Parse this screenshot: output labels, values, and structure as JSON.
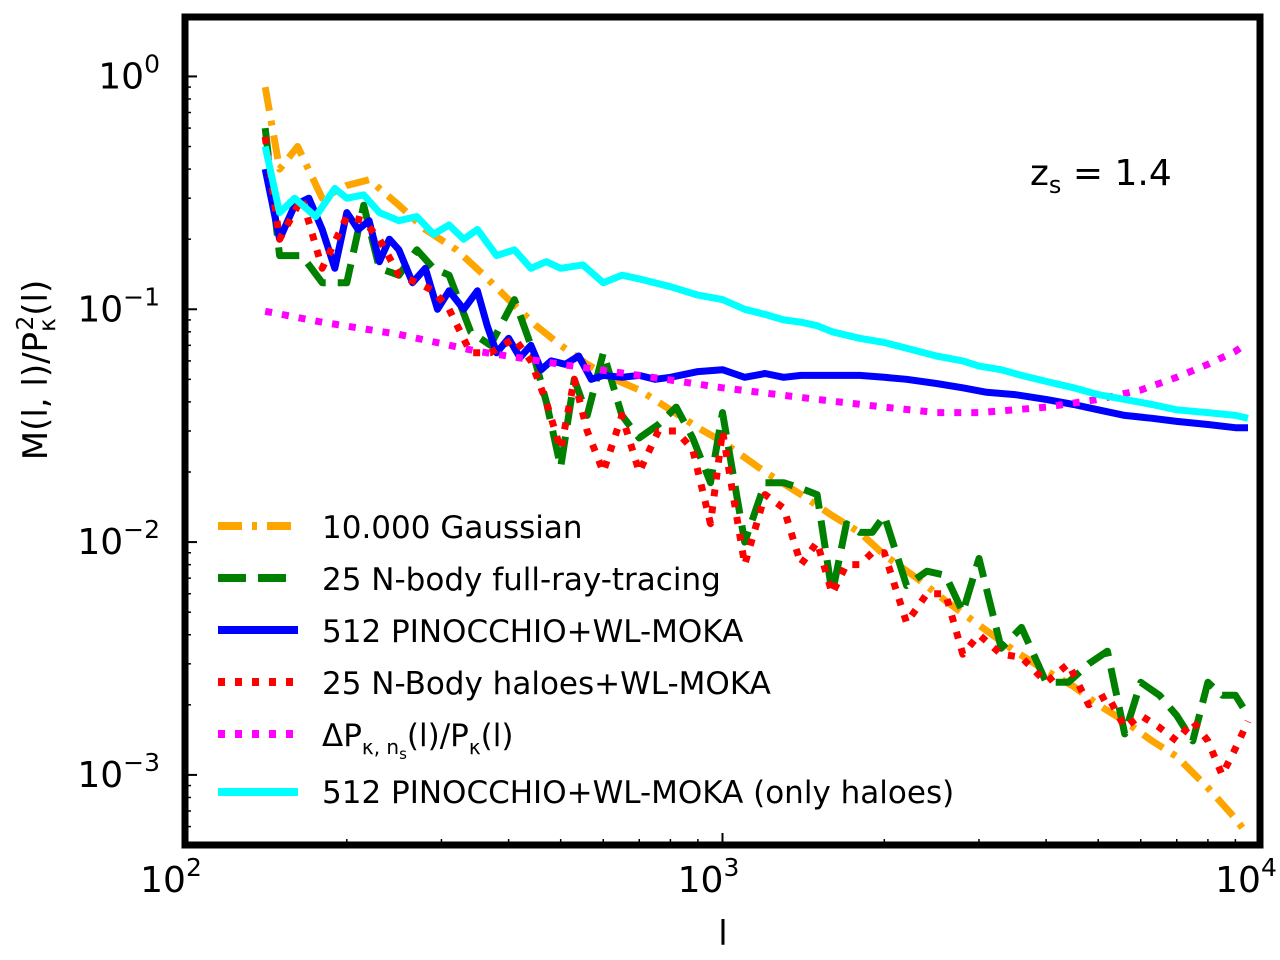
{
  "chart_data": {
    "type": "line",
    "title": "",
    "xlabel": "l",
    "ylabel": "M(l, l)/P_κ²(l)",
    "xscale": "log",
    "yscale": "log",
    "xlim": [
      100,
      10000
    ],
    "ylim": [
      0.0005,
      1.8
    ],
    "x_ticks": [
      {
        "value": 100,
        "base": "10",
        "exp": "2"
      },
      {
        "value": 1000,
        "base": "10",
        "exp": "3"
      },
      {
        "value": 10000,
        "base": "10",
        "exp": "4"
      }
    ],
    "y_ticks": [
      {
        "value": 0.001,
        "base": "10",
        "exp": "−3"
      },
      {
        "value": 0.01,
        "base": "10",
        "exp": "−2"
      },
      {
        "value": 0.1,
        "base": "10",
        "exp": "−1"
      },
      {
        "value": 1,
        "base": "10",
        "exp": "0"
      }
    ],
    "annotation": {
      "label": "z_s = 1.4",
      "main": "z",
      "sub": "s",
      "rest": " = 1.4"
    },
    "legend_position": "lower-left",
    "series": [
      {
        "name": "10.000 Gaussian",
        "color": "#FFA500",
        "style": "dashdot",
        "x": [
          141,
          150,
          162,
          180,
          200,
          220,
          250,
          280,
          320,
          360,
          400,
          450,
          500,
          560,
          630,
          700,
          800,
          900,
          1000,
          1200,
          1400,
          1600,
          1800,
          2000,
          2300,
          2600,
          3000,
          3500,
          4000,
          4500,
          5000,
          5600,
          6300,
          7000,
          8000,
          9000,
          9500
        ],
        "y": [
          0.9,
          0.4,
          0.5,
          0.3,
          0.34,
          0.36,
          0.28,
          0.22,
          0.18,
          0.14,
          0.11,
          0.085,
          0.07,
          0.058,
          0.05,
          0.045,
          0.037,
          0.031,
          0.027,
          0.02,
          0.016,
          0.013,
          0.011,
          0.0088,
          0.007,
          0.0056,
          0.0044,
          0.0034,
          0.0028,
          0.0024,
          0.002,
          0.0017,
          0.0014,
          0.0012,
          0.00088,
          0.00065,
          0.00055
        ]
      },
      {
        "name": "25 N-body full-ray-tracing",
        "color": "#008000",
        "style": "dashed",
        "x": [
          141,
          150,
          165,
          180,
          200,
          215,
          230,
          250,
          270,
          290,
          310,
          340,
          370,
          410,
          440,
          470,
          500,
          530,
          560,
          600,
          650,
          700,
          760,
          820,
          880,
          950,
          1000,
          1100,
          1200,
          1300,
          1400,
          1500,
          1600,
          1700,
          1800,
          1900,
          2000,
          2200,
          2400,
          2600,
          2800,
          3000,
          3300,
          3600,
          4000,
          4400,
          4800,
          5200,
          5600,
          6000,
          6500,
          7000,
          7500,
          8000,
          8500,
          9000,
          9500
        ],
        "y": [
          0.6,
          0.17,
          0.17,
          0.13,
          0.13,
          0.28,
          0.15,
          0.14,
          0.18,
          0.15,
          0.14,
          0.08,
          0.07,
          0.11,
          0.07,
          0.04,
          0.021,
          0.05,
          0.035,
          0.065,
          0.035,
          0.028,
          0.032,
          0.038,
          0.028,
          0.018,
          0.036,
          0.01,
          0.018,
          0.018,
          0.017,
          0.016,
          0.006,
          0.012,
          0.011,
          0.011,
          0.013,
          0.0065,
          0.0075,
          0.0072,
          0.005,
          0.0085,
          0.0035,
          0.0043,
          0.0025,
          0.0025,
          0.003,
          0.0034,
          0.0015,
          0.0025,
          0.0022,
          0.0018,
          0.0014,
          0.0025,
          0.0022,
          0.0022,
          0.0018
        ]
      },
      {
        "name": "512 PINOCCHIO+WL-MOKA",
        "color": "#0000FF",
        "style": "solid",
        "x": [
          141,
          150,
          160,
          170,
          180,
          190,
          200,
          210,
          220,
          230,
          240,
          250,
          265,
          280,
          295,
          310,
          330,
          350,
          365,
          380,
          400,
          420,
          440,
          460,
          480,
          510,
          540,
          570,
          600,
          650,
          700,
          750,
          800,
          900,
          1000,
          1100,
          1200,
          1300,
          1400,
          1600,
          1800,
          2000,
          2200,
          2500,
          2800,
          3100,
          3500,
          4000,
          4500,
          5000,
          5600,
          6300,
          7000,
          8000,
          9000,
          9500
        ],
        "y": [
          0.4,
          0.2,
          0.28,
          0.3,
          0.22,
          0.15,
          0.26,
          0.22,
          0.24,
          0.16,
          0.2,
          0.18,
          0.13,
          0.15,
          0.1,
          0.12,
          0.1,
          0.12,
          0.085,
          0.065,
          0.075,
          0.062,
          0.07,
          0.055,
          0.06,
          0.058,
          0.063,
          0.05,
          0.052,
          0.051,
          0.052,
          0.05,
          0.051,
          0.054,
          0.055,
          0.051,
          0.053,
          0.051,
          0.052,
          0.052,
          0.052,
          0.051,
          0.05,
          0.048,
          0.046,
          0.044,
          0.043,
          0.041,
          0.039,
          0.037,
          0.035,
          0.034,
          0.033,
          0.032,
          0.031,
          0.031
        ]
      },
      {
        "name": "25 N-Body haloes+WL-MOKA",
        "color": "#FF0000",
        "style": "dotted",
        "x": [
          141,
          150,
          165,
          180,
          200,
          215,
          230,
          250,
          270,
          290,
          310,
          340,
          370,
          410,
          440,
          470,
          500,
          530,
          560,
          600,
          650,
          700,
          760,
          820,
          880,
          950,
          1000,
          1100,
          1200,
          1300,
          1400,
          1500,
          1600,
          1700,
          1800,
          1900,
          2000,
          2200,
          2400,
          2600,
          2800,
          3000,
          3300,
          3600,
          4000,
          4400,
          4800,
          5200,
          5600,
          6000,
          6500,
          7000,
          7500,
          8000,
          8500,
          9000,
          9500
        ],
        "y": [
          0.55,
          0.2,
          0.3,
          0.15,
          0.25,
          0.24,
          0.2,
          0.14,
          0.13,
          0.12,
          0.1,
          0.065,
          0.065,
          0.075,
          0.06,
          0.04,
          0.025,
          0.05,
          0.03,
          0.02,
          0.035,
          0.02,
          0.03,
          0.03,
          0.025,
          0.012,
          0.03,
          0.008,
          0.016,
          0.014,
          0.008,
          0.01,
          0.006,
          0.008,
          0.008,
          0.009,
          0.009,
          0.0045,
          0.006,
          0.006,
          0.0033,
          0.004,
          0.0033,
          0.0032,
          0.0025,
          0.003,
          0.002,
          0.0022,
          0.0016,
          0.0018,
          0.0016,
          0.0014,
          0.0017,
          0.0014,
          0.001,
          0.0013,
          0.0017
        ]
      },
      {
        "name": "ΔP_κ,n_s(l)/P_κ(l)",
        "color": "#FF00FF",
        "style": "dotted",
        "x": [
          141,
          180,
          250,
          350,
          500,
          700,
          1000,
          1500,
          2000,
          2500,
          3000,
          3500,
          4000,
          5000,
          6000,
          7000,
          8000,
          9000,
          9500
        ],
        "y": [
          0.098,
          0.088,
          0.078,
          0.066,
          0.058,
          0.052,
          0.046,
          0.041,
          0.038,
          0.036,
          0.036,
          0.037,
          0.038,
          0.041,
          0.045,
          0.051,
          0.058,
          0.066,
          0.072
        ]
      },
      {
        "name": "512 PINOCCHIO+WL-MOKA (only haloes)",
        "color": "#00FFFF",
        "style": "solid",
        "x": [
          141,
          150,
          160,
          175,
          190,
          200,
          215,
          230,
          250,
          270,
          290,
          310,
          330,
          350,
          380,
          410,
          440,
          470,
          500,
          550,
          600,
          650,
          700,
          800,
          900,
          1000,
          1100,
          1200,
          1300,
          1400,
          1500,
          1600,
          1800,
          2000,
          2200,
          2500,
          2800,
          3000,
          3300,
          3600,
          4000,
          4500,
          5000,
          5600,
          6300,
          7000,
          8000,
          9000,
          9500
        ],
        "y": [
          0.5,
          0.26,
          0.3,
          0.25,
          0.33,
          0.3,
          0.31,
          0.26,
          0.24,
          0.25,
          0.21,
          0.23,
          0.2,
          0.22,
          0.17,
          0.18,
          0.15,
          0.16,
          0.15,
          0.155,
          0.13,
          0.14,
          0.135,
          0.125,
          0.115,
          0.11,
          0.1,
          0.095,
          0.09,
          0.088,
          0.085,
          0.08,
          0.075,
          0.072,
          0.068,
          0.063,
          0.06,
          0.057,
          0.055,
          0.052,
          0.049,
          0.046,
          0.043,
          0.041,
          0.039,
          0.037,
          0.036,
          0.035,
          0.034
        ]
      }
    ]
  },
  "legend": {
    "items": [
      {
        "label": "10.000 Gaussian"
      },
      {
        "label": "25 N-body full-ray-tracing"
      },
      {
        "label": "512 PINOCCHIO+WL-MOKA"
      },
      {
        "label": "25 N-Body haloes+WL-MOKA"
      },
      {
        "label": "ΔP",
        "sub": "κ, n",
        "subsub": "s",
        "rest": "(l)/P",
        "sub2": "κ",
        "rest2": "(l)"
      },
      {
        "label": "512 PINOCCHIO+WL-MOKA (only haloes)"
      }
    ]
  },
  "axes": {
    "xlabel": "l",
    "ylabel_main": "M(l, l)/P",
    "ylabel_sub": "κ",
    "ylabel_sup": "2",
    "ylabel_tail": "(l)"
  }
}
